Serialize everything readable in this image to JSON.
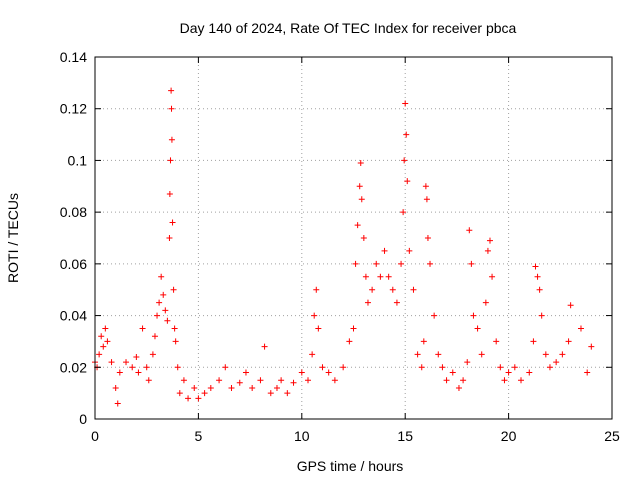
{
  "chart_data": {
    "type": "scatter",
    "title": "Day 140 of 2024, Rate Of TEC Index for receiver pbca",
    "xlabel": "GPS time / hours",
    "ylabel": "ROTI / TECUs",
    "xlim": [
      0,
      25
    ],
    "ylim": [
      0,
      0.14
    ],
    "xticks": [
      0,
      5,
      10,
      15,
      20,
      25
    ],
    "xtick_labels": [
      "0",
      "5",
      "10",
      "15",
      "20",
      "25"
    ],
    "yticks": [
      0,
      0.02,
      0.04,
      0.06,
      0.08,
      0.1,
      0.12,
      0.14
    ],
    "ytick_labels": [
      "0",
      "0.02",
      "0.04",
      "0.06",
      "0.08",
      "0.1",
      "0.12",
      "0.14"
    ],
    "grid": true,
    "marker": "+",
    "color": "#ff0000",
    "series": [
      {
        "name": "ROTI",
        "x": [
          0.0,
          0.1,
          0.2,
          0.3,
          0.4,
          0.5,
          0.6,
          0.8,
          1.0,
          1.1,
          1.2,
          1.5,
          1.8,
          2.0,
          2.1,
          2.3,
          2.5,
          2.6,
          2.8,
          2.9,
          3.0,
          3.1,
          3.2,
          3.3,
          3.4,
          3.5,
          3.6,
          3.62,
          3.65,
          3.68,
          3.7,
          3.72,
          3.75,
          3.8,
          3.85,
          3.9,
          4.0,
          4.1,
          4.3,
          4.5,
          4.8,
          5.0,
          5.3,
          5.6,
          6.0,
          6.3,
          6.6,
          7.0,
          7.3,
          7.6,
          8.0,
          8.2,
          8.5,
          8.8,
          9.0,
          9.3,
          9.6,
          10.0,
          10.3,
          10.5,
          10.6,
          10.7,
          10.8,
          11.0,
          11.3,
          11.6,
          12.0,
          12.3,
          12.5,
          12.6,
          12.7,
          12.8,
          12.85,
          12.9,
          13.0,
          13.1,
          13.2,
          13.4,
          13.6,
          13.8,
          14.0,
          14.2,
          14.4,
          14.6,
          14.8,
          14.9,
          14.95,
          15.0,
          15.05,
          15.1,
          15.2,
          15.4,
          15.6,
          15.8,
          15.9,
          16.0,
          16.05,
          16.1,
          16.2,
          16.4,
          16.6,
          16.8,
          17.0,
          17.3,
          17.6,
          17.8,
          18.0,
          18.1,
          18.2,
          18.3,
          18.5,
          18.7,
          18.9,
          19.0,
          19.1,
          19.2,
          19.4,
          19.6,
          19.8,
          20.0,
          20.3,
          20.6,
          21.0,
          21.2,
          21.3,
          21.4,
          21.5,
          21.6,
          21.8,
          22.0,
          22.3,
          22.6,
          22.9,
          23.0,
          23.5,
          23.8,
          24.0
        ],
        "y": [
          0.022,
          0.02,
          0.025,
          0.032,
          0.028,
          0.035,
          0.03,
          0.022,
          0.012,
          0.006,
          0.018,
          0.022,
          0.02,
          0.024,
          0.018,
          0.035,
          0.02,
          0.015,
          0.025,
          0.032,
          0.04,
          0.045,
          0.055,
          0.048,
          0.042,
          0.038,
          0.07,
          0.087,
          0.1,
          0.127,
          0.12,
          0.108,
          0.076,
          0.05,
          0.035,
          0.03,
          0.02,
          0.01,
          0.015,
          0.008,
          0.012,
          0.008,
          0.01,
          0.012,
          0.015,
          0.02,
          0.012,
          0.014,
          0.018,
          0.012,
          0.015,
          0.028,
          0.01,
          0.012,
          0.015,
          0.01,
          0.014,
          0.018,
          0.015,
          0.025,
          0.04,
          0.05,
          0.035,
          0.02,
          0.018,
          0.015,
          0.02,
          0.03,
          0.035,
          0.06,
          0.075,
          0.09,
          0.099,
          0.085,
          0.07,
          0.055,
          0.045,
          0.05,
          0.06,
          0.055,
          0.065,
          0.055,
          0.05,
          0.045,
          0.06,
          0.08,
          0.1,
          0.122,
          0.11,
          0.092,
          0.065,
          0.05,
          0.025,
          0.02,
          0.03,
          0.09,
          0.085,
          0.07,
          0.06,
          0.04,
          0.025,
          0.02,
          0.015,
          0.018,
          0.012,
          0.015,
          0.022,
          0.073,
          0.06,
          0.04,
          0.035,
          0.025,
          0.045,
          0.065,
          0.069,
          0.055,
          0.03,
          0.02,
          0.015,
          0.018,
          0.02,
          0.015,
          0.018,
          0.03,
          0.059,
          0.055,
          0.05,
          0.04,
          0.025,
          0.02,
          0.022,
          0.025,
          0.03,
          0.044,
          0.035,
          0.018,
          0.028
        ]
      }
    ]
  }
}
